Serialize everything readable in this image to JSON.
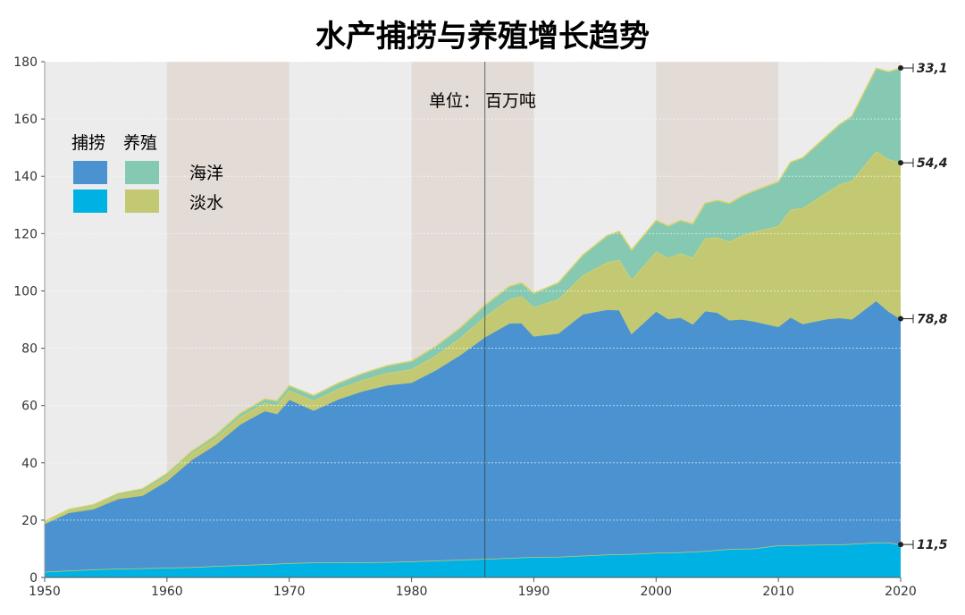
{
  "chart_data": {
    "type": "area",
    "title": "水产捕捞与养殖增长趋势",
    "unit_note": "单位： 百万吨",
    "xlim": [
      1950,
      2020
    ],
    "ylim": [
      0,
      180
    ],
    "xticks": [
      1950,
      1960,
      1970,
      1980,
      1990,
      2000,
      2010,
      2020
    ],
    "yticks": [
      0,
      20,
      40,
      60,
      80,
      100,
      120,
      140,
      160,
      180
    ],
    "decade_bands": [
      [
        1960,
        1970
      ],
      [
        1980,
        1990
      ],
      [
        2000,
        2010
      ]
    ],
    "reference_line_x": 1986,
    "grid": true,
    "legend": {
      "position": "top-left",
      "column_headers": [
        "捕捞",
        "养殖"
      ],
      "row_labels": [
        "海洋",
        "淡水"
      ]
    },
    "x": [
      1950,
      1952,
      1954,
      1956,
      1958,
      1960,
      1962,
      1964,
      1966,
      1968,
      1969,
      1970,
      1972,
      1974,
      1976,
      1978,
      1980,
      1982,
      1984,
      1986,
      1988,
      1989,
      1990,
      1992,
      1994,
      1996,
      1997,
      1998,
      2000,
      2001,
      2002,
      2003,
      2004,
      2005,
      2006,
      2007,
      2008,
      2010,
      2011,
      2012,
      2014,
      2015,
      2016,
      2018,
      2019,
      2020
    ],
    "series": [
      {
        "name": "淡水 捕捞",
        "color": "#00b2e3",
        "values": [
          2,
          2.4,
          2.8,
          3.1,
          3.2,
          3.4,
          3.6,
          4,
          4.3,
          4.6,
          4.8,
          5,
          5.2,
          5.3,
          5.3,
          5.4,
          5.6,
          5.9,
          6.2,
          6.5,
          6.8,
          7,
          7.1,
          7.2,
          7.6,
          8,
          8.1,
          8.2,
          8.6,
          8.7,
          8.8,
          9,
          9.2,
          9.6,
          9.9,
          10,
          10.1,
          11.2,
          11.2,
          11.3,
          11.5,
          11.5,
          11.7,
          12.2,
          12.2,
          11.5
        ]
      },
      {
        "name": "海洋 捕捞",
        "color": "#4a93d0",
        "values": [
          16.8,
          20.3,
          21.2,
          24.4,
          25.5,
          30.4,
          37.5,
          42.5,
          49.3,
          53.6,
          52.4,
          57.2,
          53.2,
          57,
          59.8,
          61.8,
          62.5,
          66.6,
          71.6,
          77.5,
          82,
          81.9,
          77.2,
          78.1,
          84.4,
          85.6,
          85.3,
          77,
          84.4,
          81.6,
          82,
          79.5,
          83.9,
          83,
          80,
          80.2,
          79.4,
          76.4,
          79.7,
          77.3,
          78.8,
          79.2,
          78.5,
          84.5,
          80.8,
          78.8
        ]
      },
      {
        "name": "淡水 养殖",
        "color": "#c2c972",
        "values": [
          0.5,
          0.7,
          0.9,
          1.2,
          1.5,
          1.7,
          2,
          2.2,
          2.5,
          2.7,
          2.9,
          3.1,
          3.3,
          3.5,
          3.8,
          4.1,
          4.5,
          5,
          5.8,
          7,
          8.3,
          9.2,
          10,
          11.8,
          13.4,
          16.4,
          17.4,
          18.7,
          20.7,
          21.2,
          22.3,
          23.1,
          25.2,
          26.1,
          27.3,
          29.1,
          31.1,
          35,
          37.5,
          40.3,
          44.2,
          46.4,
          48.2,
          52,
          53,
          54.4
        ]
      },
      {
        "name": "海洋 养殖",
        "color": "#86c9b2",
        "values": [
          0.3,
          0.4,
          0.5,
          0.6,
          0.7,
          0.8,
          0.9,
          1,
          1.2,
          1.4,
          1.5,
          1.6,
          1.8,
          2,
          2.3,
          2.6,
          2.9,
          3.2,
          3.6,
          4,
          4.5,
          4.7,
          4.9,
          5.7,
          7.1,
          9.3,
          10,
          10.4,
          10.9,
          11.2,
          11.5,
          11.8,
          12.3,
          12.9,
          13.4,
          13.8,
          14.3,
          15.5,
          16.5,
          17.6,
          19.8,
          21,
          22.5,
          29,
          30.5,
          33.1
        ]
      }
    ],
    "end_labels": [
      "33,1",
      "54,4",
      "78,8",
      "11,5"
    ]
  }
}
